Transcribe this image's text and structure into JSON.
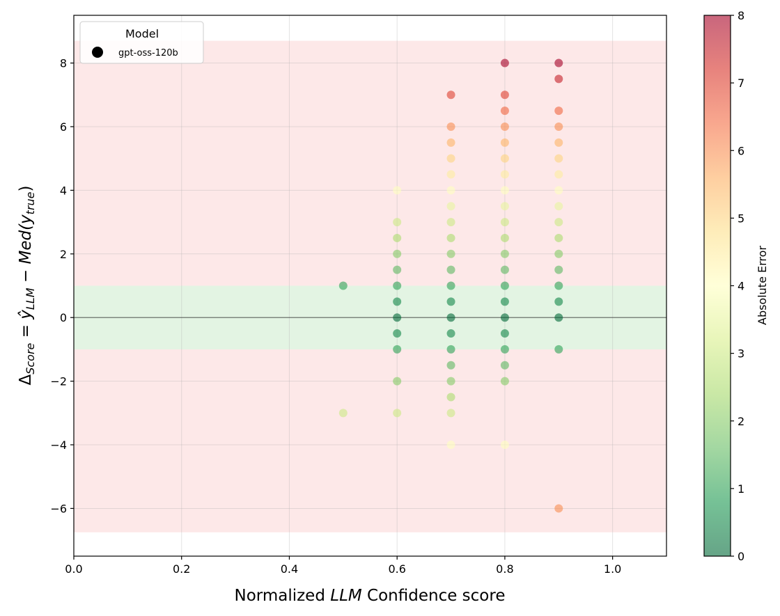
{
  "chart_data": {
    "type": "scatter",
    "xlabel": "Normalized LLM Confidence score",
    "xlabel_parts": {
      "prefix": "Normalized ",
      "italic": "LLM",
      "suffix": " Confidence score"
    },
    "ylabel": "ΔScore = ŷLLM − Med(ytrue)",
    "ylabel_parts": {
      "delta": "Δ",
      "delta_sub": "Score",
      "eq": " = ",
      "yhat": "ŷ",
      "yhat_sub": "LLM",
      "minus": " − ",
      "med": "Med(y",
      "med_sub": "true",
      "close": ")"
    },
    "xlim": [
      0.0,
      1.1
    ],
    "ylim": [
      -7.5,
      9.5
    ],
    "x_ticks": [
      0.0,
      0.2,
      0.4,
      0.6,
      0.8,
      1.0
    ],
    "x_tick_labels": [
      "0.0",
      "0.2",
      "0.4",
      "0.6",
      "0.8",
      "1.0"
    ],
    "y_ticks": [
      -6,
      -4,
      -2,
      0,
      2,
      4,
      6,
      8
    ],
    "y_tick_labels": [
      "−6",
      "−4",
      "−2",
      "0",
      "2",
      "4",
      "6",
      "8"
    ],
    "grid": true,
    "bands": [
      {
        "name": "error-band-red",
        "y0": -6.75,
        "y1": 8.7,
        "color": "#fde8e8"
      },
      {
        "name": "tolerance-band-green",
        "y0": -1.0,
        "y1": 1.0,
        "color": "#e3f4e3"
      }
    ],
    "reference_line_y": 0,
    "legend": {
      "title": "Model",
      "placement": "top-left",
      "entries": [
        {
          "label": "gpt-oss-120b",
          "color": "#000000"
        }
      ]
    },
    "colorbar": {
      "label": "Absolute Error",
      "min": 0,
      "max": 8,
      "ticks": [
        0,
        1,
        2,
        3,
        4,
        5,
        6,
        7,
        8
      ],
      "tick_labels": [
        "0",
        "1",
        "2",
        "3",
        "4",
        "5",
        "6",
        "7",
        "8"
      ],
      "colormap": "RdYlGn_r"
    },
    "series": [
      {
        "name": "gpt-oss-120b",
        "points": [
          {
            "x": 0.5,
            "y": 1.0
          },
          {
            "x": 0.5,
            "y": -3.0
          },
          {
            "x": 0.6,
            "y": 4.0
          },
          {
            "x": 0.6,
            "y": 3.0
          },
          {
            "x": 0.6,
            "y": 2.5
          },
          {
            "x": 0.6,
            "y": 2.0
          },
          {
            "x": 0.6,
            "y": 1.5
          },
          {
            "x": 0.6,
            "y": 1.0
          },
          {
            "x": 0.6,
            "y": 0.5
          },
          {
            "x": 0.6,
            "y": 0.0
          },
          {
            "x": 0.6,
            "y": -0.5
          },
          {
            "x": 0.6,
            "y": -1.0
          },
          {
            "x": 0.6,
            "y": -2.0
          },
          {
            "x": 0.6,
            "y": -3.0
          },
          {
            "x": 0.7,
            "y": 7.0
          },
          {
            "x": 0.7,
            "y": 6.0
          },
          {
            "x": 0.7,
            "y": 5.5
          },
          {
            "x": 0.7,
            "y": 5.0
          },
          {
            "x": 0.7,
            "y": 4.5
          },
          {
            "x": 0.7,
            "y": 4.0
          },
          {
            "x": 0.7,
            "y": 3.5
          },
          {
            "x": 0.7,
            "y": 3.0
          },
          {
            "x": 0.7,
            "y": 2.5
          },
          {
            "x": 0.7,
            "y": 2.0
          },
          {
            "x": 0.7,
            "y": 1.5
          },
          {
            "x": 0.7,
            "y": 1.0
          },
          {
            "x": 0.7,
            "y": 0.5
          },
          {
            "x": 0.7,
            "y": 0.0
          },
          {
            "x": 0.7,
            "y": -0.5
          },
          {
            "x": 0.7,
            "y": -1.0
          },
          {
            "x": 0.7,
            "y": -1.5
          },
          {
            "x": 0.7,
            "y": -2.0
          },
          {
            "x": 0.7,
            "y": -2.5
          },
          {
            "x": 0.7,
            "y": -3.0
          },
          {
            "x": 0.7,
            "y": -4.0
          },
          {
            "x": 0.8,
            "y": 8.0
          },
          {
            "x": 0.8,
            "y": 7.0
          },
          {
            "x": 0.8,
            "y": 6.5
          },
          {
            "x": 0.8,
            "y": 6.0
          },
          {
            "x": 0.8,
            "y": 5.5
          },
          {
            "x": 0.8,
            "y": 5.0
          },
          {
            "x": 0.8,
            "y": 4.5
          },
          {
            "x": 0.8,
            "y": 4.0
          },
          {
            "x": 0.8,
            "y": 3.5
          },
          {
            "x": 0.8,
            "y": 3.0
          },
          {
            "x": 0.8,
            "y": 2.5
          },
          {
            "x": 0.8,
            "y": 2.0
          },
          {
            "x": 0.8,
            "y": 1.5
          },
          {
            "x": 0.8,
            "y": 1.0
          },
          {
            "x": 0.8,
            "y": 0.5
          },
          {
            "x": 0.8,
            "y": 0.0
          },
          {
            "x": 0.8,
            "y": -0.5
          },
          {
            "x": 0.8,
            "y": -1.0
          },
          {
            "x": 0.8,
            "y": -1.5
          },
          {
            "x": 0.8,
            "y": -2.0
          },
          {
            "x": 0.8,
            "y": -4.0
          },
          {
            "x": 0.9,
            "y": 8.0
          },
          {
            "x": 0.9,
            "y": 7.5
          },
          {
            "x": 0.9,
            "y": 6.5
          },
          {
            "x": 0.9,
            "y": 6.0
          },
          {
            "x": 0.9,
            "y": 5.5
          },
          {
            "x": 0.9,
            "y": 5.0
          },
          {
            "x": 0.9,
            "y": 4.5
          },
          {
            "x": 0.9,
            "y": 4.0
          },
          {
            "x": 0.9,
            "y": 3.5
          },
          {
            "x": 0.9,
            "y": 3.0
          },
          {
            "x": 0.9,
            "y": 2.5
          },
          {
            "x": 0.9,
            "y": 2.0
          },
          {
            "x": 0.9,
            "y": 1.5
          },
          {
            "x": 0.9,
            "y": 1.0
          },
          {
            "x": 0.9,
            "y": 0.5
          },
          {
            "x": 0.9,
            "y": 0.0
          },
          {
            "x": 0.9,
            "y": -1.0
          },
          {
            "x": 0.9,
            "y": -6.0
          }
        ]
      }
    ]
  }
}
